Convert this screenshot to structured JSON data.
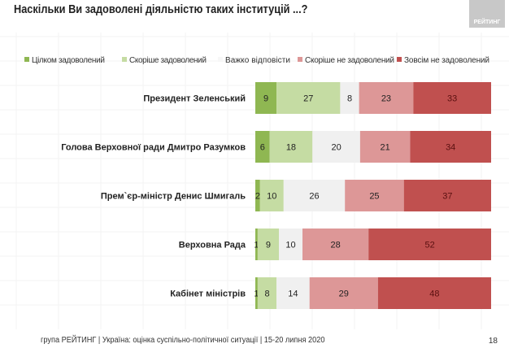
{
  "header": {
    "title": "Наскільки Ви задоволені діяльністю таких інституцій ...?",
    "logo_text": "РЕЙТИНГ"
  },
  "footer": {
    "text": "група РЕЙТИНГ |  Україна: оцінка суспільно-політичної  ситуації  | 15-20 липня  2020",
    "page": "18"
  },
  "chart_data": {
    "type": "bar",
    "orientation": "horizontal",
    "stacked": true,
    "legend_position": "top",
    "categories": [
      "Президент Зеленський",
      "Голова Верховної ради Дмитро Разумков",
      "Прем`єр-міністр Денис Шмигаль",
      "Верховна Рада",
      "Кабінет міністрів"
    ],
    "series": [
      {
        "name": "Цілком задоволений",
        "color": "#8fb752",
        "values": [
          9,
          6,
          2,
          1,
          1
        ]
      },
      {
        "name": "Скоріше задоволений",
        "color": "#c5dca3",
        "values": [
          27,
          18,
          10,
          9,
          8
        ]
      },
      {
        "name": "Важко відповісти",
        "color": "#f0f0f0",
        "values": [
          8,
          20,
          26,
          10,
          14
        ]
      },
      {
        "name": "Скоріше не задоволений",
        "color": "#dd9797",
        "values": [
          23,
          21,
          25,
          28,
          29
        ]
      },
      {
        "name": "Зовсім не задоволений",
        "color": "#c0504f",
        "values": [
          33,
          34,
          37,
          52,
          48
        ]
      }
    ],
    "xlim": [
      0,
      100
    ]
  }
}
